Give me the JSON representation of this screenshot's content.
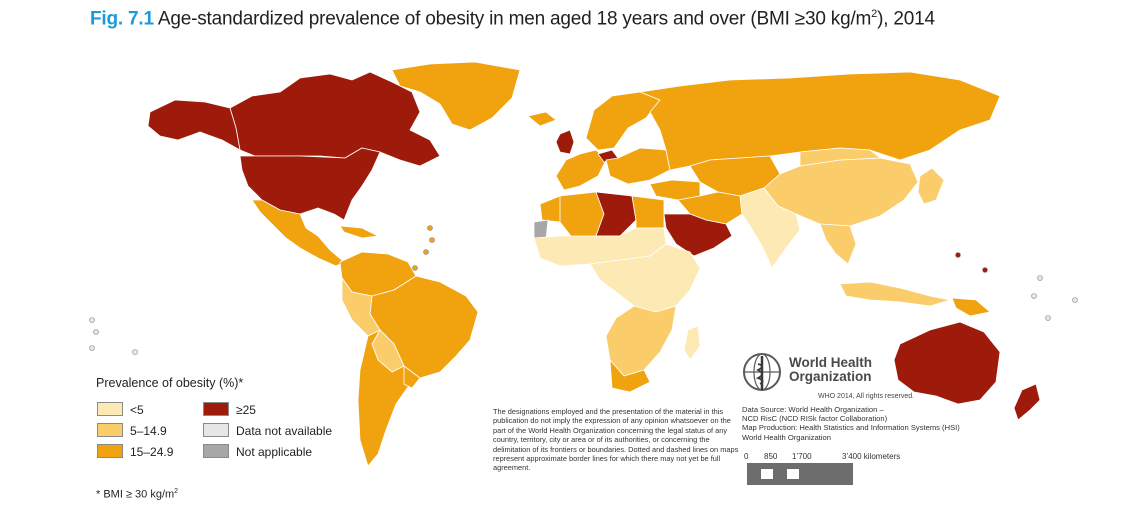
{
  "title": {
    "fig_label": "Fig. 7.1",
    "text": "Age-standardized prevalence of obesity in men aged 18 years and over (BMI ≥30 kg/m",
    "superscript": "2",
    "suffix": "), 2014"
  },
  "colors": {
    "lt5": "#fde9b4",
    "c5to15": "#fbcc6a",
    "c15to25": "#f0a20f",
    "ge25": "#9e1a0b",
    "no_data": "#e6e6e6",
    "not_applicable": "#a7a7a7",
    "ocean": "#ffffff",
    "border": "#ffffff"
  },
  "legend": {
    "title": "Prevalence of obesity (%)*",
    "items": [
      {
        "label": "<5",
        "color": "#fde9b4"
      },
      {
        "label": "5–14.9",
        "color": "#fbcc6a"
      },
      {
        "label": "15–24.9",
        "color": "#f0a20f"
      },
      {
        "label": "≥25",
        "color": "#9e1a0b"
      },
      {
        "label": "Data not available",
        "color": "#e6e6e6"
      },
      {
        "label": "Not applicable",
        "color": "#a7a7a7"
      }
    ]
  },
  "footnote": {
    "text": "* BMI ≥ 30 kg/m",
    "superscript": "2"
  },
  "disclaimer": "The designations employed and the presentation of the material in this publication do not imply the expression of any opinion whatsoever on the part of the World Health Organization concerning the legal status of any country, territory, city or area or of its authorities, or concerning the delimitation of its frontiers or boundaries. Dotted and dashed lines on maps represent approximate border lines for which there may not yet be full agreement.",
  "who": {
    "name_line1": "World Health",
    "name_line2": "Organization",
    "copyright": "WHO 2014, All rights reserved."
  },
  "credits": {
    "line1": "Data Source: World Health Organization –",
    "line2": "NCD RisC (NCD RISk factor Collaboration)",
    "line3": "Map Production: Health Statistics and Information Systems (HSI)",
    "line4": "World Health Organization"
  },
  "scale": {
    "ticks": [
      "0",
      "850",
      "1’700",
      "3’400 kilometers"
    ]
  }
}
